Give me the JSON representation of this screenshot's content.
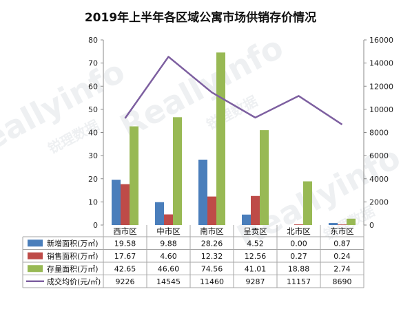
{
  "chart_data": {
    "type": "bar",
    "title": "2019年上半年各区域公寓市场供销存价情况",
    "categories": [
      "西市区",
      "中市区",
      "南市区",
      "呈贡区",
      "北市区",
      "东市区"
    ],
    "y_left": {
      "min": 0,
      "max": 80,
      "ticks": [
        0,
        10,
        20,
        30,
        40,
        50,
        60,
        70,
        80
      ]
    },
    "y_right": {
      "min": 0,
      "max": 16000,
      "ticks": [
        0,
        2000,
        4000,
        6000,
        8000,
        10000,
        12000,
        14000,
        16000
      ]
    },
    "grid": false,
    "legend": "bottom-table",
    "series": [
      {
        "name": "新增面积(万㎡)",
        "kind": "bar",
        "axis": "left",
        "color": "#4a7ebb",
        "values": [
          19.58,
          9.88,
          28.26,
          4.52,
          0.0,
          0.87
        ],
        "labels": [
          "19.58",
          "9.88",
          "28.26",
          "4.52",
          "0.00",
          "0.87"
        ]
      },
      {
        "name": "销售面积(万㎡)",
        "kind": "bar",
        "axis": "left",
        "color": "#be4b48",
        "values": [
          17.67,
          4.6,
          12.32,
          12.56,
          0.27,
          0.24
        ],
        "labels": [
          "17.67",
          "4.60",
          "12.32",
          "12.56",
          "0.27",
          "0.24"
        ]
      },
      {
        "name": "存量面积(万㎡)",
        "kind": "bar",
        "axis": "left",
        "color": "#98b954",
        "values": [
          42.65,
          46.6,
          74.56,
          41.01,
          18.88,
          2.74
        ],
        "labels": [
          "42.65",
          "46.60",
          "74.56",
          "41.01",
          "18.88",
          "2.74"
        ]
      },
      {
        "name": "成交均价(元/㎡)",
        "kind": "line",
        "axis": "right",
        "color": "#7d5fa0",
        "values": [
          9226,
          14545,
          11460,
          9287,
          11157,
          8690
        ],
        "labels": [
          "9226",
          "14545",
          "11460",
          "9287",
          "11157",
          "8690"
        ]
      }
    ]
  },
  "watermark": {
    "brand": "Reallyinfo",
    "cn": "锐理数据"
  }
}
